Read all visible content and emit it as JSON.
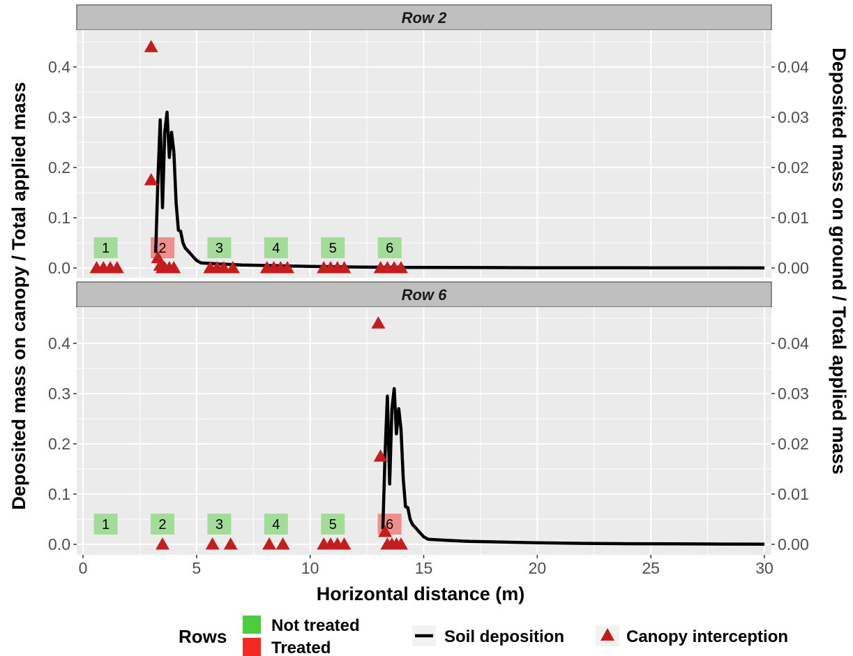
{
  "chart_data": {
    "type": "line",
    "xlabel": "Horizontal distance (m)",
    "ylabel_left": "Deposited mass on canopy / Total applied mass",
    "ylabel_right": "Deposited mass on ground / Total applied mass",
    "xlim": [
      0,
      30
    ],
    "ylim_left": [
      0,
      0.45
    ],
    "ylim_right": [
      0,
      0.045
    ],
    "x_ticks": [
      0,
      5,
      10,
      15,
      20,
      25,
      30
    ],
    "x_tick_labels": [
      "0",
      "5",
      "10",
      "15",
      "20",
      "25",
      "30"
    ],
    "y_ticks_left": [
      0,
      0.1,
      0.2,
      0.3,
      0.4
    ],
    "y_tick_labels_left": [
      "0.0",
      "0.1",
      "0.2",
      "0.3",
      "0.4"
    ],
    "y_ticks_right": [
      0,
      0.01,
      0.02,
      0.03,
      0.04
    ],
    "y_tick_labels_right": [
      "0.00",
      "0.01",
      "0.02",
      "0.03",
      "0.04"
    ],
    "grid": true,
    "legend": {
      "position": "bottom",
      "rows_title": "Rows",
      "items": [
        {
          "label": "Not treated",
          "color": "#4dcc3d",
          "kind": "square"
        },
        {
          "label": "Treated",
          "color": "#f22a22",
          "kind": "square"
        },
        {
          "label": "Soil deposition",
          "color": "#000000",
          "kind": "line"
        },
        {
          "label": "Canopy interception",
          "color": "#c41d1d",
          "kind": "triangle"
        }
      ]
    },
    "colors": {
      "not_treated_box": "#a3dc98",
      "treated_box": "#ef8f8c",
      "canopy_marker": "#c41d1d",
      "soil_line": "#000000",
      "panel_bg": "#ebebeb",
      "strip_bg": "#bfbfbf"
    },
    "panels": [
      {
        "title": "Row 2",
        "rows": [
          {
            "label": "1",
            "x": 1.0,
            "treated": false
          },
          {
            "label": "2",
            "x": 3.5,
            "treated": true
          },
          {
            "label": "3",
            "x": 6.0,
            "treated": false
          },
          {
            "label": "4",
            "x": 8.5,
            "treated": false
          },
          {
            "label": "5",
            "x": 11.0,
            "treated": false
          },
          {
            "label": "6",
            "x": 13.5,
            "treated": false
          }
        ],
        "soil_deposition": {
          "x": [
            3.2,
            3.3,
            3.4,
            3.5,
            3.6,
            3.7,
            3.8,
            3.9,
            4.0,
            4.1,
            4.2,
            4.3,
            4.4,
            4.5,
            4.7,
            5.0,
            5.2,
            6,
            7,
            8,
            9,
            10,
            12,
            14,
            16,
            18,
            20,
            22,
            25,
            28,
            30
          ],
          "y": [
            0.003,
            0.018,
            0.0295,
            0.012,
            0.027,
            0.031,
            0.022,
            0.027,
            0.023,
            0.013,
            0.0075,
            0.0073,
            0.005,
            0.004,
            0.003,
            0.0015,
            0.001,
            0.0008,
            0.0006,
            0.0005,
            0.0004,
            0.0003,
            0.0002,
            0.00012,
            0.0001,
            8e-05,
            6e-05,
            5e-05,
            4e-05,
            3e-05,
            2e-05
          ]
        },
        "canopy_interception": {
          "x": [
            0.6,
            0.9,
            1.2,
            1.5,
            3.0,
            3.0,
            3.3,
            3.4,
            3.5,
            3.6,
            3.8,
            4.0,
            5.6,
            5.9,
            6.2,
            6.6,
            8.1,
            8.4,
            8.7,
            9.0,
            10.6,
            10.9,
            11.2,
            11.5,
            13.1,
            13.4,
            13.7,
            14.0
          ],
          "y": [
            0,
            0,
            0,
            0,
            0.44,
            0.175,
            0.02,
            0.005,
            0,
            0,
            0,
            0,
            0,
            0,
            0,
            0,
            0,
            0,
            0,
            0,
            0,
            0,
            0,
            0,
            0,
            0,
            0,
            0
          ]
        }
      },
      {
        "title": "Row 6",
        "rows": [
          {
            "label": "1",
            "x": 1.0,
            "treated": false
          },
          {
            "label": "2",
            "x": 3.5,
            "treated": false
          },
          {
            "label": "3",
            "x": 6.0,
            "treated": false
          },
          {
            "label": "4",
            "x": 8.5,
            "treated": false
          },
          {
            "label": "5",
            "x": 11.0,
            "treated": false
          },
          {
            "label": "6",
            "x": 13.5,
            "treated": true
          }
        ],
        "soil_deposition": {
          "x": [
            13.2,
            13.3,
            13.4,
            13.5,
            13.6,
            13.7,
            13.8,
            13.9,
            14.0,
            14.1,
            14.2,
            14.3,
            14.4,
            14.5,
            14.7,
            15.0,
            15.2,
            16,
            17,
            18,
            19,
            20,
            22,
            24,
            26,
            28,
            30
          ],
          "y": [
            0.003,
            0.018,
            0.0295,
            0.012,
            0.027,
            0.031,
            0.022,
            0.027,
            0.023,
            0.013,
            0.0075,
            0.0073,
            0.005,
            0.004,
            0.003,
            0.0015,
            0.001,
            0.0008,
            0.0006,
            0.0005,
            0.0004,
            0.0003,
            0.0002,
            0.00012,
            0.0001,
            6e-05,
            4e-05
          ]
        },
        "canopy_interception": {
          "x": [
            3.5,
            5.7,
            6.5,
            8.2,
            8.8,
            10.6,
            10.9,
            11.2,
            11.5,
            13.0,
            13.1,
            13.3,
            13.4,
            13.6,
            13.8,
            14.0
          ],
          "y": [
            0,
            0,
            0,
            0,
            0,
            0,
            0,
            0,
            0,
            0.44,
            0.175,
            0.025,
            0,
            0,
            0,
            0
          ]
        }
      }
    ]
  }
}
